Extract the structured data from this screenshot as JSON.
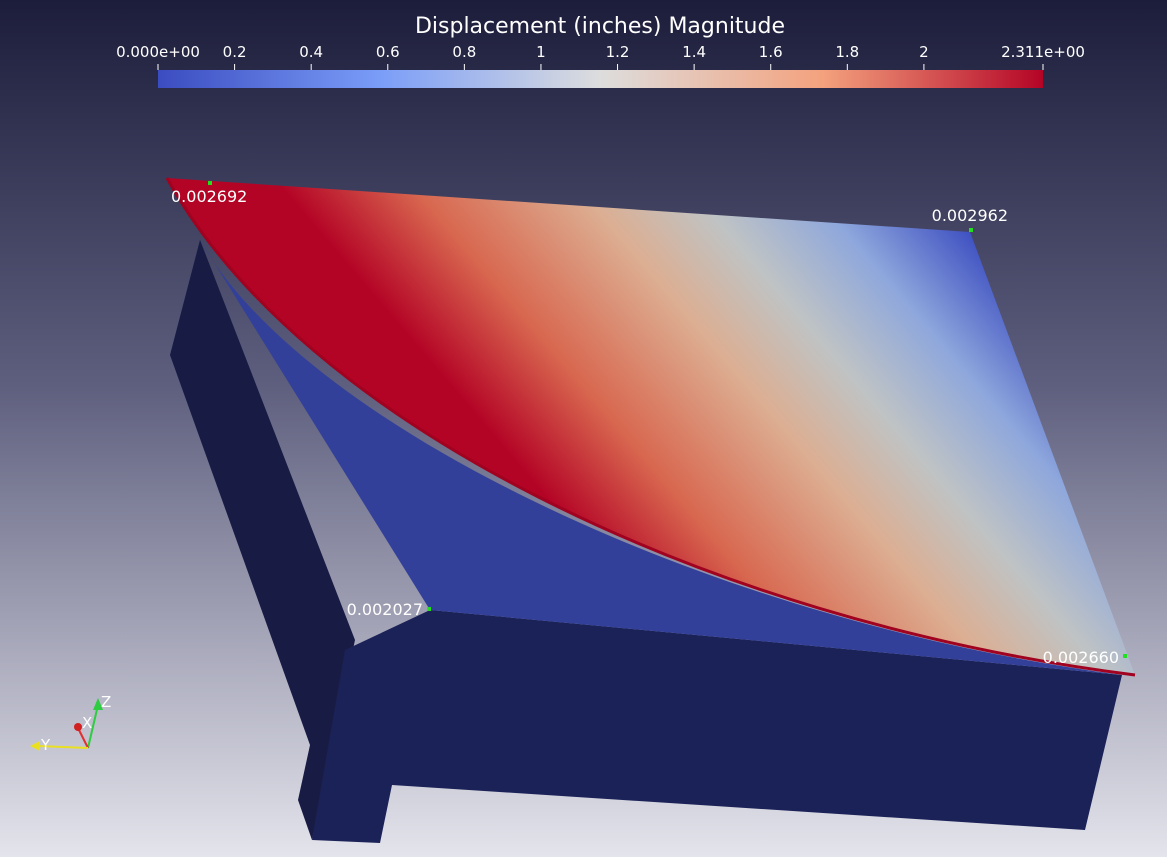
{
  "legend": {
    "title": "Displacement (inches) Magnitude",
    "ticks": [
      "0.000e+00",
      "0.2",
      "0.4",
      "0.6",
      "0.8",
      "1",
      "1.2",
      "1.4",
      "1.6",
      "1.8",
      "2",
      "2.311e+00"
    ]
  },
  "point_labels": [
    "0.002692",
    "0.002962",
    "0.002027",
    "0.002660"
  ],
  "axes": {
    "x": "X",
    "y": "Y",
    "z": "Z"
  }
}
